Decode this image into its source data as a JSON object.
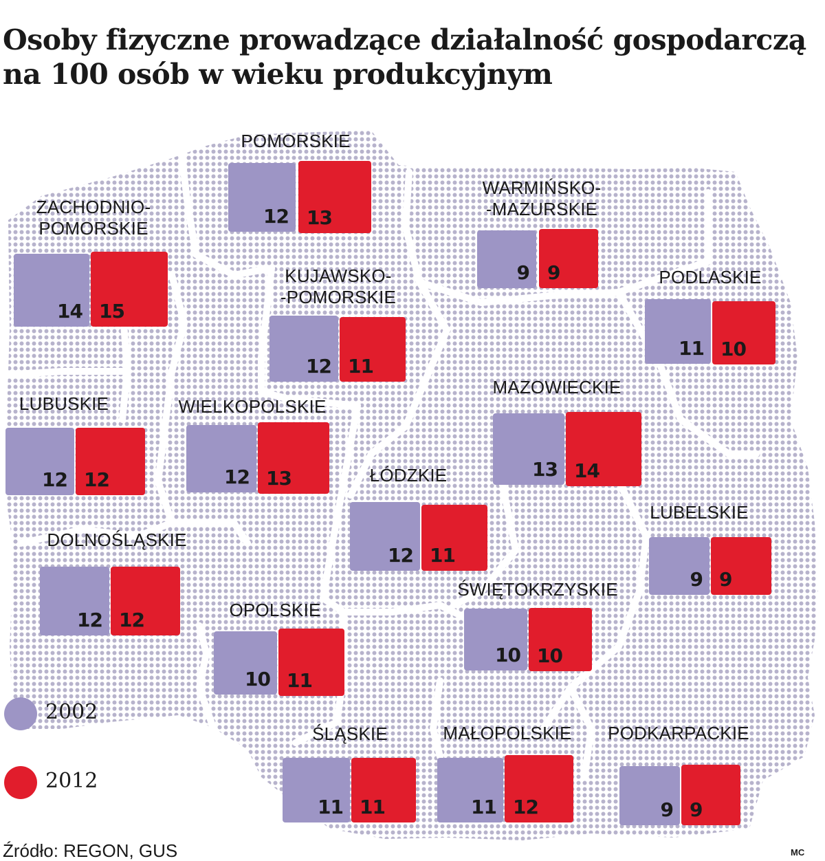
{
  "title": {
    "line1": "Osoby fizyczne prowadzące działalność gospodarczą",
    "line2": "na 100 osób w wieku produkcyjnym"
  },
  "legend": {
    "y2002_label": "2002",
    "y2012_label": "2012"
  },
  "colors": {
    "y2002": "#9d95c5",
    "y2012": "#e11d2c",
    "map_dots": "#b7b3cc"
  },
  "source": "Źródło: REGON, GUS",
  "credit": "MC",
  "regions": {
    "pomorskie": {
      "label": "POMORSKIE",
      "v2002": "12",
      "v2012": "13"
    },
    "zachodniopomorskie": {
      "label1": "ZACHODNIO-",
      "label2": "POMORSKIE",
      "v2002": "14",
      "v2012": "15"
    },
    "warminskomazurskie": {
      "label1": "WARMIŃSKO-",
      "label2": "-MAZURSKIE",
      "v2002": "9",
      "v2012": "9"
    },
    "kujawskopomorskie": {
      "label1": "KUJAWSKO-",
      "label2": "-POMORSKIE",
      "v2002": "12",
      "v2012": "11"
    },
    "podlaskie": {
      "label": "PODLASKIE",
      "v2002": "11",
      "v2012": "10"
    },
    "mazowieckie": {
      "label": "MAZOWIECKIE",
      "v2002": "13",
      "v2012": "14"
    },
    "lubuskie": {
      "label": "LUBUSKIE",
      "v2002": "12",
      "v2012": "12"
    },
    "wielkopolskie": {
      "label": "WIELKOPOLSKIE",
      "v2002": "12",
      "v2012": "13"
    },
    "lodzkie": {
      "label": "ŁÓDZKIE",
      "v2002": "12",
      "v2012": "11"
    },
    "lubelskie": {
      "label": "LUBELSKIE",
      "v2002": "9",
      "v2012": "9"
    },
    "dolnoslaskie": {
      "label": "DOLNOŚLĄSKIE",
      "v2002": "12",
      "v2012": "12"
    },
    "swietokrzyskie": {
      "label": "ŚWIĘTOKRZYSKIE",
      "v2002": "10",
      "v2012": "10"
    },
    "opolskie": {
      "label": "OPOLSKIE",
      "v2002": "10",
      "v2012": "11"
    },
    "slaskie": {
      "label": "ŚLĄSKIE",
      "v2002": "11",
      "v2012": "11"
    },
    "malopolskie": {
      "label": "MAŁOPOLSKIE",
      "v2002": "11",
      "v2012": "12"
    },
    "podkarpackie": {
      "label": "PODKARPACKIE",
      "v2002": "9",
      "v2012": "9"
    }
  }
}
